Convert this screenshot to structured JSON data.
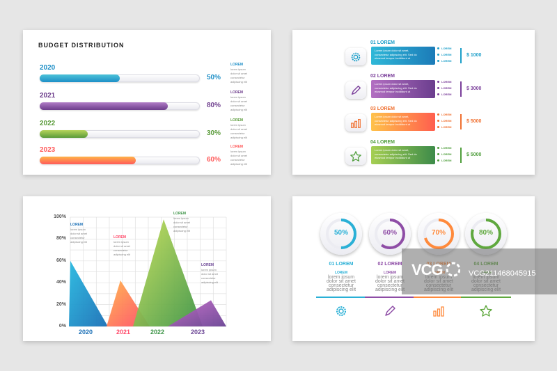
{
  "budget": {
    "title": "BUDGET DISTRIBUTION",
    "rows": [
      {
        "year": "2020",
        "pct_label": "50%",
        "value": 0.5,
        "color_a": "#4cc3d9",
        "color_b": "#1e8fc7",
        "note_title": "LOREM"
      },
      {
        "year": "2021",
        "pct_label": "80%",
        "value": 0.8,
        "color_a": "#b07cc6",
        "color_b": "#6d3d8c",
        "note_title": "LOREM"
      },
      {
        "year": "2022",
        "pct_label": "30%",
        "value": 0.3,
        "color_a": "#b5d35a",
        "color_b": "#5a9b3a",
        "note_title": "LOREM"
      },
      {
        "year": "2023",
        "pct_label": "60%",
        "value": 0.6,
        "color_a": "#ffb347",
        "color_b": "#ff5a5a",
        "note_title": "LOREM"
      }
    ],
    "note_text": [
      "lorem ipsum",
      "dolor sit amet",
      "consectetur",
      "adipiscing elit"
    ]
  },
  "steps": {
    "items": [
      {
        "label": "01 LOREM",
        "icon": "gear-icon",
        "amount": "$ 1000",
        "color_a": "#2fb8d8",
        "color_b": "#1c7bb8",
        "text": "#1d9fc9"
      },
      {
        "label": "02 LOREM",
        "icon": "pencil-icon",
        "amount": "$ 3000",
        "color_a": "#b36fc2",
        "color_b": "#6b3e8e",
        "text": "#7a3e9a"
      },
      {
        "label": "03 LOREM",
        "icon": "bar-chart-icon",
        "amount": "$ 5000",
        "color_a": "#ffc24a",
        "color_b": "#ff5e4e",
        "text": "#f07030"
      },
      {
        "label": "04 LOREM",
        "icon": "star-icon",
        "amount": "$ 5000",
        "color_a": "#a6cf52",
        "color_b": "#3d8b4a",
        "text": "#4f9e3c"
      }
    ],
    "band_text": [
      "Lorem ipsum dolor sit amet,",
      "consectetur adipiscing elit. Sed do",
      "eiusmod tempor incididunt ut"
    ],
    "bullet_text": "LOREM"
  },
  "chart_data": {
    "type": "area",
    "categories": [
      "2020",
      "2021",
      "2022",
      "2023"
    ],
    "values": [
      60,
      42,
      98,
      24
    ],
    "colors": [
      [
        "#27b9e0",
        "#1a6fb6"
      ],
      [
        "#ffb54a",
        "#ff4a6a"
      ],
      [
        "#c8e05a",
        "#3d9447"
      ],
      [
        "#c46bc8",
        "#6a4494"
      ]
    ],
    "yticks": [
      "100%",
      "80%",
      "60%",
      "40%",
      "20%",
      "0%"
    ],
    "ylim": [
      0,
      100
    ],
    "grid": true,
    "annotations": [
      {
        "title": "LOREM",
        "lines": [
          "lorem ipsum",
          "dolor sit amet",
          "consectetur",
          "adipiscing elit"
        ]
      },
      {
        "title": "LOREM",
        "lines": [
          "lorem ipsum",
          "dolor sit amet",
          "consectetur",
          "adipiscing elit"
        ]
      },
      {
        "title": "LOREM",
        "lines": [
          "lorem ipsum",
          "dolor sit amet",
          "consectetur",
          "adipiscing elit"
        ]
      },
      {
        "title": "LOREM",
        "lines": [
          "lorem ipsum",
          "dolor sit amet",
          "consectetur",
          "adipiscing elit"
        ]
      }
    ]
  },
  "progress": {
    "items": [
      {
        "pct_label": "50%",
        "value": 0.5,
        "label": "01 LOREM",
        "color": "#2ab0d6",
        "icon": "gear-icon"
      },
      {
        "pct_label": "60%",
        "value": 0.6,
        "label": "02 LOREM",
        "color": "#8e4da6",
        "icon": "pencil-icon"
      },
      {
        "pct_label": "70%",
        "value": 0.7,
        "label": "03 LOREM",
        "color": "#ff8a3c",
        "icon": "bar-chart-icon"
      },
      {
        "pct_label": "80%",
        "value": 0.8,
        "label": "04 LOREM",
        "color": "#5fa83e",
        "icon": "star-icon"
      }
    ],
    "sub_title": "LOREM",
    "sub_text": [
      "lorem ipsum",
      "dolor sit amet",
      "consectetur",
      "adipiscing elit"
    ]
  },
  "watermark": {
    "logo": "VCG",
    "id": "VCG211468045915"
  }
}
